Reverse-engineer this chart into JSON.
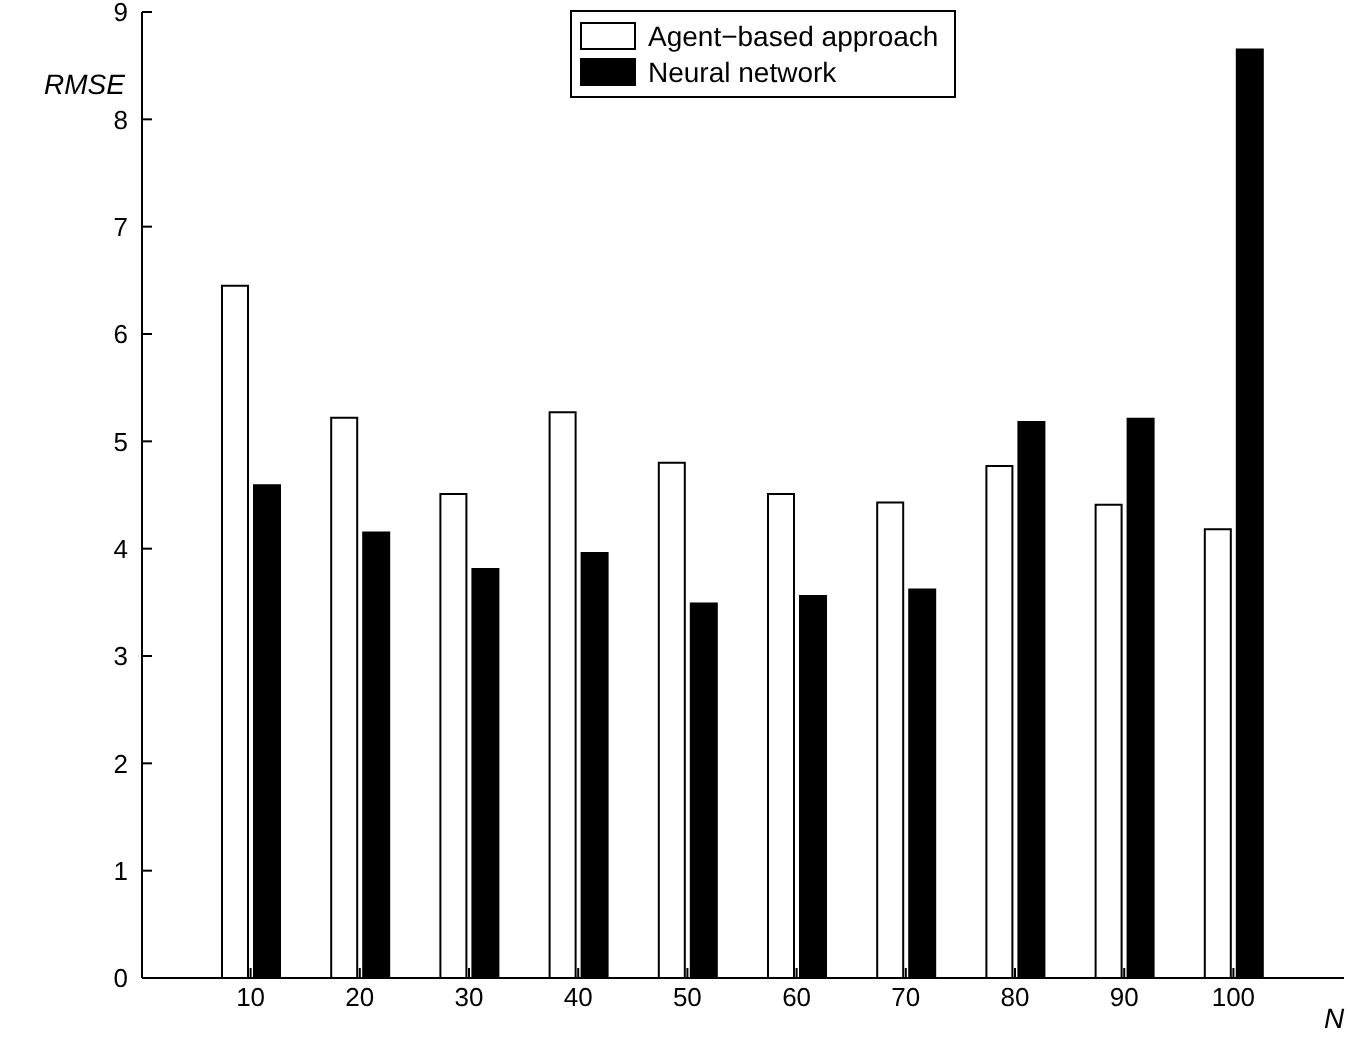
{
  "chart_data": {
    "type": "bar",
    "xlabel": "N",
    "ylabel": "RMSE",
    "categories": [
      "10",
      "20",
      "30",
      "40",
      "50",
      "60",
      "70",
      "80",
      "90",
      "100"
    ],
    "series": [
      {
        "name": "Agent−based approach",
        "color": "#ffffff",
        "values": [
          6.45,
          5.22,
          4.51,
          5.27,
          4.8,
          4.51,
          4.43,
          4.77,
          4.41,
          4.18
        ]
      },
      {
        "name": "Neural network",
        "color": "#000000",
        "values": [
          4.59,
          4.15,
          3.81,
          3.96,
          3.49,
          3.56,
          3.62,
          5.18,
          5.21,
          8.65
        ]
      }
    ],
    "ylim": [
      0,
      9
    ],
    "yticks": [
      0,
      1,
      2,
      3,
      4,
      5,
      6,
      7,
      8,
      9
    ],
    "grid": false,
    "legend": "top"
  }
}
